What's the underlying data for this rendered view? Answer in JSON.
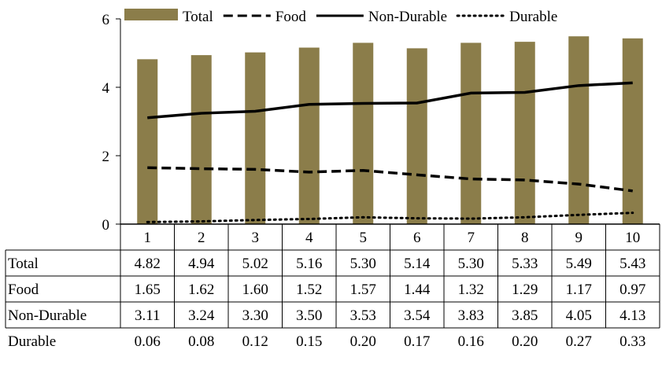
{
  "chart_data": {
    "type": "bar",
    "title": "",
    "xlabel": "",
    "ylabel": "",
    "ylim": [
      0,
      6
    ],
    "yticks": [
      "0",
      "2",
      "4",
      "6"
    ],
    "categories": [
      "1",
      "2",
      "3",
      "4",
      "5",
      "6",
      "7",
      "8",
      "9",
      "10"
    ],
    "legend_position": "top",
    "grid": false,
    "series": [
      {
        "name": "Total",
        "type": "bar",
        "color": "#8B7D4A",
        "values": [
          4.82,
          4.94,
          5.02,
          5.16,
          5.3,
          5.14,
          5.3,
          5.33,
          5.49,
          5.43
        ],
        "labels": [
          "4.82",
          "4.94",
          "5.02",
          "5.16",
          "5.30",
          "5.14",
          "5.30",
          "5.33",
          "5.49",
          "5.43"
        ]
      },
      {
        "name": "Food",
        "type": "line",
        "style": "dashed",
        "color": "#000000",
        "values": [
          1.65,
          1.62,
          1.6,
          1.52,
          1.57,
          1.44,
          1.32,
          1.29,
          1.17,
          0.97
        ],
        "labels": [
          "1.65",
          "1.62",
          "1.60",
          "1.52",
          "1.57",
          "1.44",
          "1.32",
          "1.29",
          "1.17",
          "0.97"
        ]
      },
      {
        "name": "Non-Durable",
        "type": "line",
        "style": "solid",
        "color": "#000000",
        "values": [
          3.11,
          3.24,
          3.3,
          3.5,
          3.53,
          3.54,
          3.83,
          3.85,
          4.05,
          4.13
        ],
        "labels": [
          "3.11",
          "3.24",
          "3.30",
          "3.50",
          "3.53",
          "3.54",
          "3.83",
          "3.85",
          "4.05",
          "4.13"
        ]
      },
      {
        "name": "Durable",
        "type": "line",
        "style": "dotted",
        "color": "#000000",
        "values": [
          0.06,
          0.08,
          0.12,
          0.15,
          0.2,
          0.17,
          0.16,
          0.2,
          0.27,
          0.33
        ],
        "labels": [
          "0.06",
          "0.08",
          "0.12",
          "0.15",
          "0.20",
          "0.17",
          "0.16",
          "0.20",
          "0.27",
          "0.33"
        ]
      }
    ]
  }
}
